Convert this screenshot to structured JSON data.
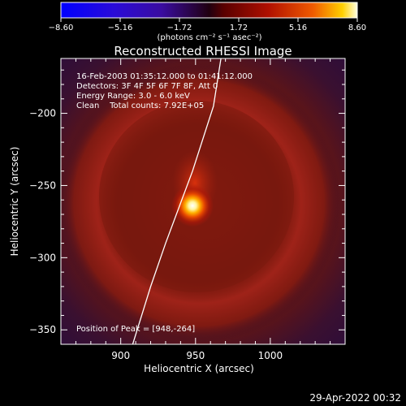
{
  "chart_data": {
    "type": "heatmap",
    "title": "Reconstructed RHESSI Image",
    "xlabel": "Heliocentric X (arcsec)",
    "ylabel": "Heliocentric Y (arcsec)",
    "xlim": [
      860,
      1050
    ],
    "ylim": [
      -360,
      -162
    ],
    "x_ticks": [
      900,
      950,
      1000
    ],
    "y_ticks": [
      -200,
      -250,
      -300,
      -350
    ],
    "colorbar": {
      "ticks": [
        "-8.60",
        "-5.16",
        "-1.72",
        "1.72",
        "5.16",
        "8.60"
      ],
      "range": [
        -8.6,
        8.6
      ],
      "unit_label": "(photons cm⁻² s⁻¹ asec⁻²)"
    },
    "annotations": [
      "16-Feb-2003 01:35:12.000 to 01:41:12.000",
      "Detectors: 3F 4F 5F 6F 7F 8F, Att 0",
      "Energy Range: 3.0 - 6.0 keV",
      "Clean    Total counts: 7.92E+05"
    ],
    "peak": {
      "label": "Position of Peak = [948,-264]",
      "x": 948,
      "y": -264,
      "value": 8.6
    },
    "limb": [
      [
        908,
        -360
      ],
      [
        920,
        -320
      ],
      [
        930,
        -290
      ],
      [
        948,
        -240
      ],
      [
        962,
        -195
      ],
      [
        967,
        -162
      ]
    ]
  },
  "footer_date": "29-Apr-2022 00:32"
}
